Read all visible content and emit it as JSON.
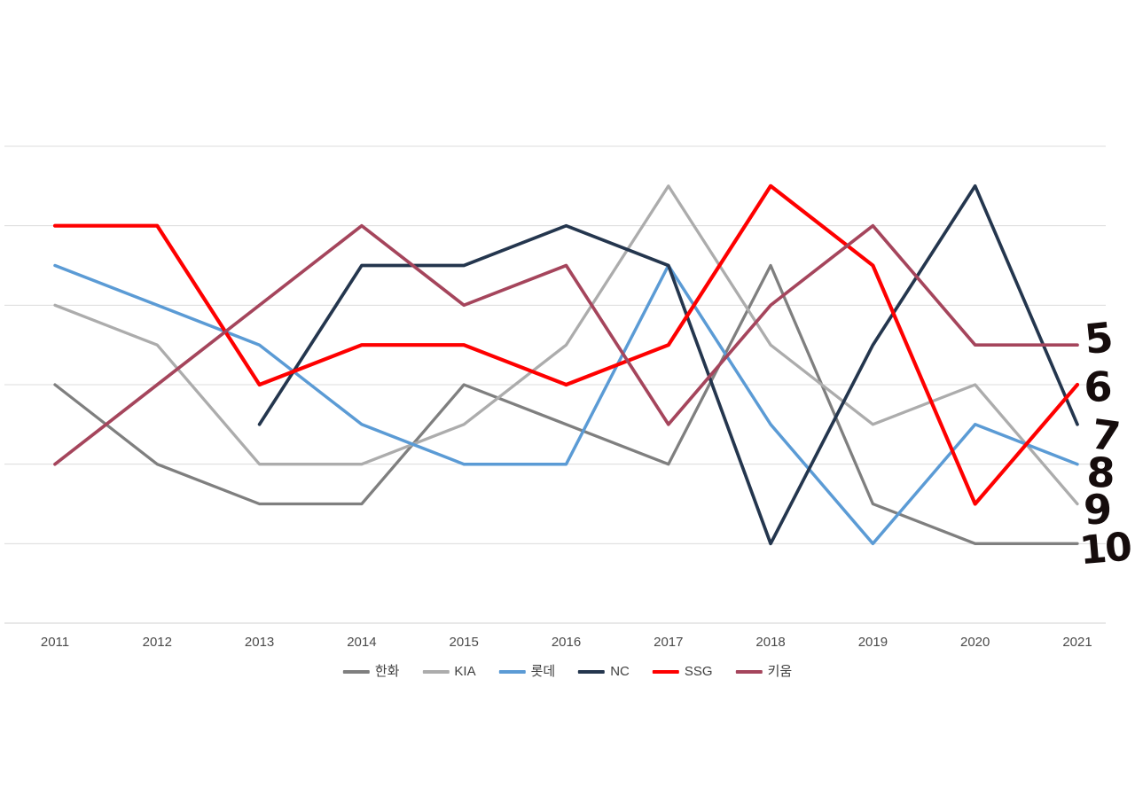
{
  "chart_data": {
    "type": "line",
    "title": "",
    "xlabel": "",
    "ylabel": "",
    "categories": [
      "2011",
      "2012",
      "2013",
      "2014",
      "2015",
      "2016",
      "2017",
      "2018",
      "2019",
      "2020",
      "2021"
    ],
    "y_axis": {
      "min": 0,
      "max": 12,
      "inverted": true,
      "gridline_every": 2,
      "tick_labels_visible": false,
      "grid": "on"
    },
    "legend_position": "bottom",
    "series": [
      {
        "name": "한화",
        "color": "#7F7F7F",
        "values": [
          6,
          8,
          9,
          9,
          6,
          7,
          8,
          3,
          9,
          10,
          10
        ]
      },
      {
        "name": "KIA",
        "color": "#ACACAC",
        "values": [
          4,
          5,
          8,
          8,
          7,
          5,
          1,
          5,
          7,
          6,
          9
        ]
      },
      {
        "name": "롯데",
        "color": "#5B9BD5",
        "values": [
          3,
          4,
          5,
          7,
          8,
          8,
          3,
          7,
          10,
          7,
          8
        ]
      },
      {
        "name": "NC",
        "color": "#24364E",
        "values": [
          null,
          null,
          7,
          3,
          3,
          2,
          3,
          10,
          5,
          1,
          7
        ]
      },
      {
        "name": "SSG",
        "color": "#FE0000",
        "values": [
          2,
          2,
          6,
          5,
          5,
          6,
          5,
          1,
          3,
          9,
          6
        ]
      },
      {
        "name": "키움",
        "color": "#A5455C",
        "values": [
          8,
          6,
          4,
          2,
          4,
          3,
          7,
          4,
          2,
          5,
          5
        ]
      }
    ],
    "annotations": [
      {
        "text": "5",
        "rank": 5,
        "style": "handwritten"
      },
      {
        "text": "6",
        "rank": 6,
        "style": "handwritten"
      },
      {
        "text": "7",
        "rank": 7,
        "style": "handwritten"
      },
      {
        "text": "8",
        "rank": 8,
        "style": "handwritten"
      },
      {
        "text": "9",
        "rank": 9,
        "style": "handwritten"
      },
      {
        "text": "10",
        "rank": 10,
        "style": "handwritten"
      }
    ]
  }
}
